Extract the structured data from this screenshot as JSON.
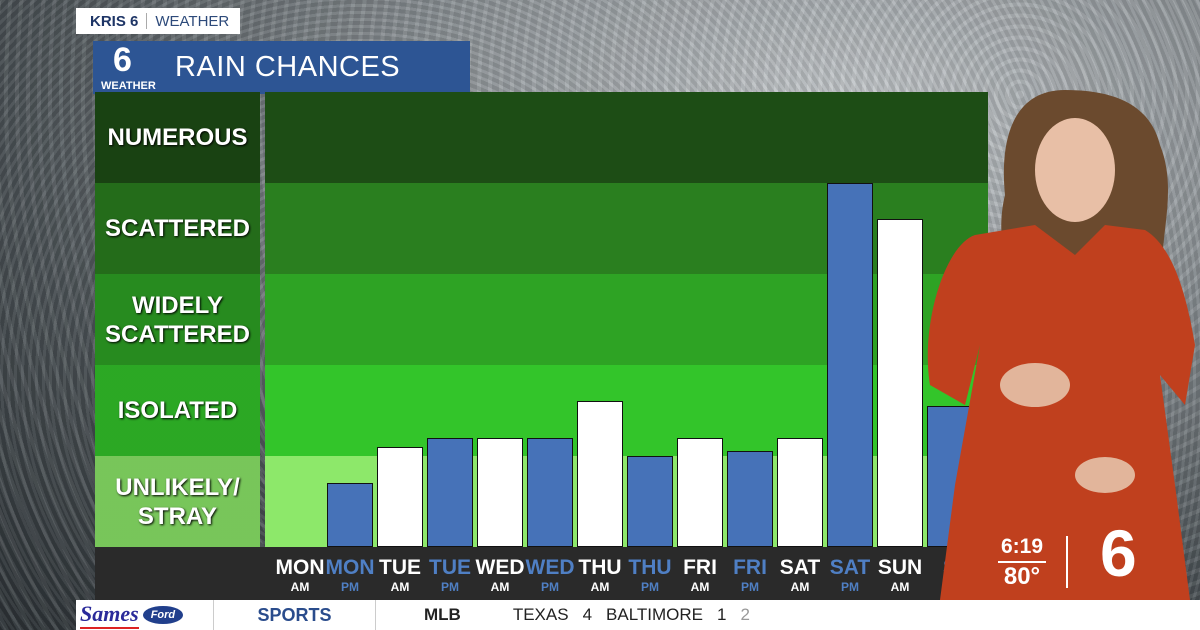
{
  "header": {
    "station": "KRIS 6",
    "section": "WEATHER",
    "logo_text": "6",
    "logo_sub": "WEATHER",
    "title": "RAIN CHANCES"
  },
  "chart_data": {
    "type": "bar",
    "title": "RAIN CHANCES",
    "y_levels": [
      "UNLIKELY/ STRAY",
      "ISOLATED",
      "WIDELY SCATTERED",
      "SCATTERED",
      "NUMEROUS"
    ],
    "ylim": [
      0,
      5
    ],
    "categories": [
      {
        "day": "MON",
        "period": "AM"
      },
      {
        "day": "MON",
        "period": "PM"
      },
      {
        "day": "TUE",
        "period": "AM"
      },
      {
        "day": "TUE",
        "period": "PM"
      },
      {
        "day": "WED",
        "period": "AM"
      },
      {
        "day": "WED",
        "period": "PM"
      },
      {
        "day": "THU",
        "period": "AM"
      },
      {
        "day": "THU",
        "period": "PM"
      },
      {
        "day": "FRI",
        "period": "AM"
      },
      {
        "day": "FRI",
        "period": "PM"
      },
      {
        "day": "SAT",
        "period": "AM"
      },
      {
        "day": "SAT",
        "period": "PM"
      },
      {
        "day": "SUN",
        "period": "AM"
      },
      {
        "day": "S",
        "period": "P"
      }
    ],
    "values": [
      0,
      0.7,
      1.1,
      1.2,
      1.2,
      1.2,
      1.6,
      1.0,
      1.2,
      1.05,
      1.2,
      4.0,
      3.6,
      1.55
    ],
    "colors": {
      "am": "#ffffff",
      "pm": "#4672b8",
      "pm_label": "#4f7fc4"
    },
    "band_colors": [
      "#8de86a",
      "#33c52a",
      "#2ea324",
      "#2a7f1f",
      "#1d4d15"
    ]
  },
  "corner": {
    "time": "6:19",
    "temp": "80°",
    "logo": "6"
  },
  "ticker": {
    "sponsor": "Sames",
    "sponsor2": "Ford",
    "section": "SPORTS",
    "league": "MLB",
    "team1": "TEXAS",
    "score1": "4",
    "team2": "BALTIMORE",
    "score2": "1",
    "inning": "2"
  }
}
